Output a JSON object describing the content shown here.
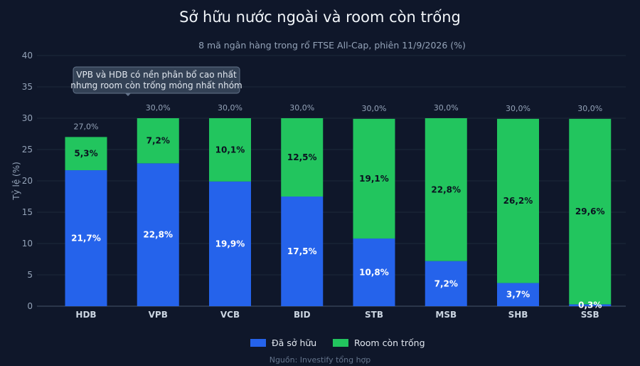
{
  "chart_data": {
    "type": "bar",
    "stacked": true,
    "title": "Sở hữu nước ngoài và room còn trống",
    "subtitle": "8 mã ngân hàng trong rổ FTSE All-Cap, phiên 11/9/2026 (%)",
    "ylabel": "Tỷ lệ (%)",
    "xlabel": "",
    "ylim": [
      0,
      40
    ],
    "yticks": [
      0,
      5,
      10,
      15,
      20,
      25,
      30,
      35,
      40
    ],
    "grid": true,
    "legend_position": "bottom-center",
    "categories": [
      "HDB",
      "VPB",
      "VCB",
      "BID",
      "STB",
      "MSB",
      "SHB",
      "SSB"
    ],
    "series": [
      {
        "name": "Đã sở hữu",
        "color": "#2563eb",
        "values": [
          21.7,
          22.8,
          19.9,
          17.5,
          10.8,
          7.2,
          3.7,
          0.3
        ],
        "labels": [
          "21,7%",
          "22,8%",
          "19,9%",
          "17,5%",
          "10,8%",
          "7,2%",
          "3,7%",
          "0,3%"
        ]
      },
      {
        "name": "Room còn trống",
        "color": "#22c55e",
        "values": [
          5.3,
          7.2,
          10.1,
          12.5,
          19.1,
          22.8,
          26.2,
          29.6
        ],
        "labels": [
          "5,3%",
          "7,2%",
          "10,1%",
          "12,5%",
          "19,1%",
          "22,8%",
          "26,2%",
          "29,6%"
        ]
      }
    ],
    "totals": [
      27.0,
      30.0,
      30.0,
      30.0,
      30.0,
      30.0,
      30.0,
      30.0
    ],
    "total_labels": [
      "27,0%",
      "30,0%",
      "30,0%",
      "30,0%",
      "30,0%",
      "30,0%",
      "30,0%",
      "30,0%"
    ],
    "annotation": {
      "lines": [
        "VPB và HDB có nền phân bổ cao nhất",
        "nhưng room còn trống mỏng nhất nhóm"
      ],
      "target_category": "HDB"
    },
    "source": "Nguồn: Investify tổng hợp"
  }
}
